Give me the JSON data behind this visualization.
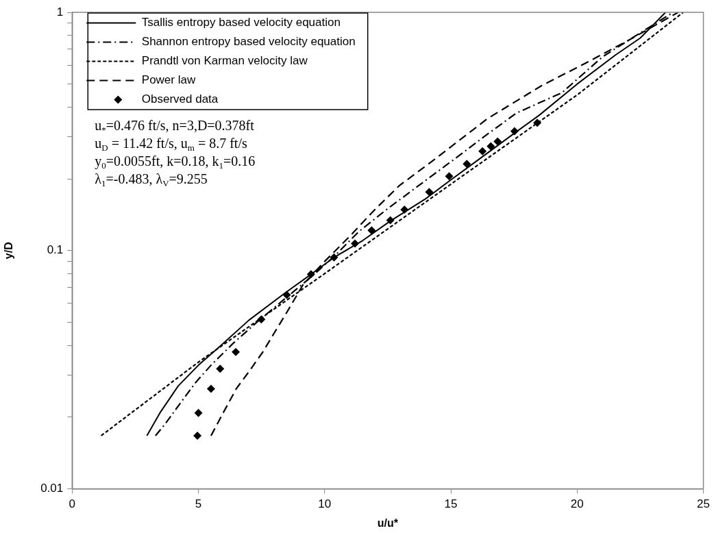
{
  "chart_data": {
    "type": "line",
    "xlabel": "u/u*",
    "ylabel": "y/D",
    "xlim": [
      0,
      25
    ],
    "xticks": [
      0,
      5,
      10,
      15,
      20,
      25
    ],
    "ylim": [
      0.01,
      1
    ],
    "log": "y",
    "yticks": [
      0.01,
      {
        "value": 0.02,
        "label": null
      },
      {
        "value": 0.03,
        "label": null
      },
      {
        "value": 0.04,
        "label": null
      },
      {
        "value": 0.05,
        "label": null
      },
      {
        "value": 0.06,
        "label": null
      },
      {
        "value": 0.07,
        "label": null
      },
      {
        "value": 0.08,
        "label": null
      },
      {
        "value": 0.09,
        "label": null
      },
      0.1,
      {
        "value": 0.2,
        "label": null
      },
      {
        "value": 0.3,
        "label": null
      },
      {
        "value": 0.4,
        "label": null
      },
      {
        "value": 0.5,
        "label": null
      },
      {
        "value": 0.6,
        "label": null
      },
      {
        "value": 0.7,
        "label": null
      },
      {
        "value": 0.8,
        "label": null
      },
      {
        "value": 0.9,
        "label": null
      },
      1
    ],
    "grid": false,
    "legend": "top left",
    "series": [
      {
        "name": "Tsallis entropy based velocity equation",
        "type": "line",
        "color": "#000000",
        "line_style": "solid",
        "marker": "none",
        "x": [
          2.96,
          3.5,
          4.2,
          5.0,
          5.9,
          7.0,
          8.4,
          9.5,
          10.4,
          11.5,
          12.6,
          14.0,
          15.0,
          16.3,
          17.5,
          18.5,
          20.0,
          21.5,
          22.5,
          23.5
        ],
        "values": [
          0.0167,
          0.021,
          0.027,
          0.033,
          0.04,
          0.051,
          0.066,
          0.08,
          0.094,
          0.11,
          0.133,
          0.165,
          0.198,
          0.25,
          0.31,
          0.37,
          0.5,
          0.66,
          0.78,
          1
        ]
      },
      {
        "name": "Shannon entropy based velocity equation",
        "type": "line",
        "color": "#000000",
        "line_style": "dashdot",
        "marker": "none",
        "x": [
          3.3,
          3.7,
          4.3,
          4.9,
          5.5,
          6.4,
          7.5,
          8.6,
          9.5,
          10.4,
          11.35,
          12.5,
          13.8,
          15.07,
          16.3,
          17.6,
          19.4,
          21.0,
          22.5,
          23.8
        ],
        "values": [
          0.0167,
          0.0188,
          0.023,
          0.028,
          0.033,
          0.041,
          0.052,
          0.065,
          0.078,
          0.095,
          0.12,
          0.15,
          0.19,
          0.239,
          0.3,
          0.378,
          0.46,
          0.65,
          0.82,
          1
        ]
      },
      {
        "name": "Prandtl von Karman velocity law",
        "type": "line",
        "color": "#000000",
        "line_style": "dotted",
        "marker": "none",
        "x": [
          1.15,
          5,
          10,
          15,
          20,
          24.2
        ],
        "values": [
          0.0167,
          0.034,
          0.08,
          0.19,
          0.45,
          1
        ]
      },
      {
        "name": "Power law",
        "type": "line",
        "color": "#000000",
        "line_style": "dashed",
        "marker": "none",
        "x": [
          5.5,
          6.0,
          6.5,
          7.0,
          7.55,
          8.0,
          8.5,
          9.15,
          10,
          11,
          12,
          12.95,
          14.3,
          16.45,
          18.56,
          20.5,
          22.05,
          24
        ],
        "values": [
          0.0167,
          0.021,
          0.0263,
          0.031,
          0.0375,
          0.045,
          0.055,
          0.072,
          0.09,
          0.115,
          0.149,
          0.187,
          0.239,
          0.358,
          0.49,
          0.625,
          0.765,
          1
        ]
      },
      {
        "name": "Observed data",
        "type": "scatter",
        "color": "#000000",
        "marker": "diamond",
        "x": [
          4.96,
          5.0,
          5.5,
          5.86,
          6.48,
          7.49,
          8.5,
          9.46,
          10.37,
          11.2,
          11.86,
          12.6,
          13.16,
          14.14,
          14.93,
          15.63,
          16.25,
          16.58,
          16.85,
          17.52,
          18.42
        ],
        "values": [
          0.0167,
          0.0208,
          0.0263,
          0.0319,
          0.0375,
          0.0514,
          0.0651,
          0.0796,
          0.0935,
          0.107,
          0.1216,
          0.134,
          0.1486,
          0.176,
          0.205,
          0.231,
          0.261,
          0.274,
          0.287,
          0.317,
          0.344
        ]
      }
    ],
    "annotations": [
      "u$_{*}$=0.476 ft/s, n=3,D=0.378ft",
      "u$_{D}$ = 11.42 ft/s, u$_{m}$ = 8.7 ft/s",
      "y$_{0}$=0.0055ft, k=0.18, k$_{1}$=0.16",
      "λ$_{1}$=-0.483, λ$_{V}$=9.255"
    ]
  }
}
